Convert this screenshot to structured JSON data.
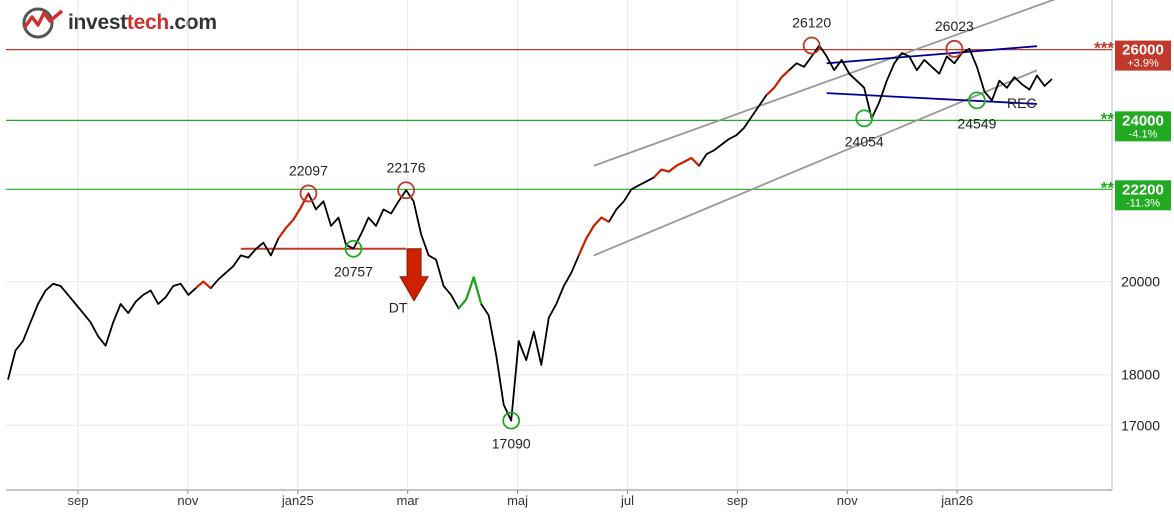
{
  "brand": {
    "part1": "invest",
    "part2": "tech",
    "part3": ".com"
  },
  "colors": {
    "price": "#000000",
    "up": "#cc2200",
    "down": "#1aa51a",
    "resistance": "#c0392b",
    "support": "#22aa22",
    "trend_channel": "#999999",
    "wedge": "#000099"
  },
  "chart_data": {
    "type": "line",
    "y_scale": "log",
    "ylim": [
      15800,
      27500
    ],
    "ticks_y": [
      17000,
      18000,
      20000
    ],
    "ticks_x": [
      "sep",
      "nov",
      "jan25",
      "mar",
      "maj",
      "jul",
      "sep",
      "nov",
      "jan26"
    ],
    "grid": true,
    "series": [
      {
        "values": [
          17900,
          18500,
          18700,
          19100,
          19500,
          19800,
          19950,
          19900,
          19700,
          19500,
          19300,
          19100,
          18800,
          18600,
          19100,
          19500,
          19300,
          19550,
          19700,
          19800,
          19500,
          19650,
          19900,
          19950,
          19700,
          19850,
          20000,
          19850,
          20050,
          20200,
          20350,
          20600,
          20550,
          20750,
          20900,
          20600,
          21000,
          21250,
          21450,
          21750,
          22097,
          21700,
          21900,
          21300,
          21500,
          20850,
          20757,
          21100,
          21500,
          21300,
          21700,
          21600,
          21900,
          22176,
          21900,
          21100,
          20600,
          20500,
          19900,
          19700,
          19400,
          19600,
          20100,
          19500,
          19250,
          18400,
          17400,
          17090,
          18700,
          18300,
          18900,
          18200,
          19200,
          19500,
          19900,
          20200,
          20600,
          21000,
          21300,
          21500,
          21400,
          21700,
          21900,
          22200,
          22300,
          22400,
          22500,
          22700,
          22650,
          22800,
          22900,
          23000,
          22800,
          23100,
          23200,
          23350,
          23500,
          23600,
          23800,
          24100,
          24400,
          24700,
          24900,
          25200,
          25400,
          25600,
          25500,
          25800,
          26120,
          25800,
          25400,
          25700,
          25300,
          25100,
          24900,
          24054,
          24500,
          25100,
          25600,
          25900,
          25800,
          25400,
          25700,
          25500,
          25300,
          25800,
          25600,
          25900,
          26023,
          25500,
          24800,
          24549,
          25100,
          24900,
          25200,
          25000,
          24850,
          25250,
          24950,
          25150
        ]
      }
    ],
    "levels": [
      {
        "value": 26000,
        "label": "26000",
        "stars": "***",
        "pct": "+3.9%",
        "kind": "resistance"
      },
      {
        "value": 24000,
        "label": "24000",
        "stars": "**",
        "pct": "-4.1%",
        "kind": "support"
      },
      {
        "value": 22200,
        "label": "22200",
        "stars": "**",
        "pct": "-11.3%",
        "kind": "support"
      }
    ],
    "annotations": [
      {
        "text": "22097",
        "value": 22097,
        "index": 40,
        "kind": "top"
      },
      {
        "text": "22176",
        "value": 22176,
        "index": 53,
        "kind": "top"
      },
      {
        "text": "20757",
        "value": 20757,
        "index": 46,
        "kind": "bottom"
      },
      {
        "text": "17090",
        "value": 17090,
        "index": 67,
        "kind": "bottom"
      },
      {
        "text": "26120",
        "value": 26120,
        "index": 107,
        "kind": "top"
      },
      {
        "text": "24054",
        "value": 24054,
        "index": 114,
        "kind": "bottom"
      },
      {
        "text": "26023",
        "value": 26023,
        "index": 126,
        "kind": "top"
      },
      {
        "text": "24549",
        "value": 24549,
        "index": 129,
        "kind": "bottom"
      }
    ],
    "pattern_labels": {
      "dt": "DT",
      "rec": "REC"
    },
    "neckline": {
      "value": 20757,
      "from_index": 31,
      "to_index": 53
    },
    "channel": {
      "upper": [
        {
          "index": 78,
          "value": 22800
        },
        {
          "index": 145,
          "value": 28000
        }
      ],
      "lower": [
        {
          "index": 78,
          "value": 20600
        },
        {
          "index": 137,
          "value": 25400
        }
      ]
    },
    "wedge": {
      "upper": [
        {
          "index": 109,
          "value": 25600
        },
        {
          "index": 137,
          "value": 26100
        }
      ],
      "lower": [
        {
          "index": 109,
          "value": 24750
        },
        {
          "index": 137,
          "value": 24450
        }
      ]
    },
    "colored_segments": [
      {
        "from": 25,
        "to": 27,
        "color": "up"
      },
      {
        "from": 36,
        "to": 40,
        "color": "up"
      },
      {
        "from": 60,
        "to": 63,
        "color": "down"
      },
      {
        "from": 76,
        "to": 80,
        "color": "up"
      },
      {
        "from": 86,
        "to": 92,
        "color": "up"
      },
      {
        "from": 101,
        "to": 104,
        "color": "up"
      }
    ]
  }
}
